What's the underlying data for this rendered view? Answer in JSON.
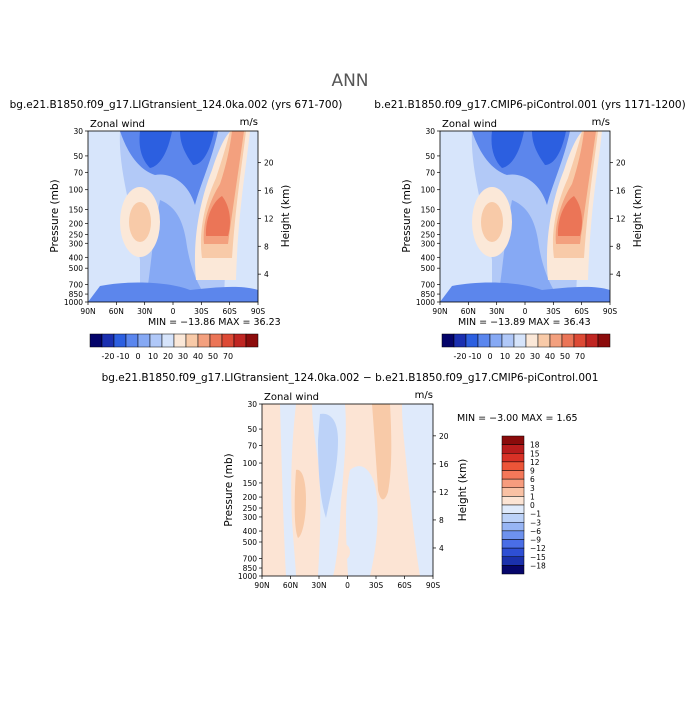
{
  "page": {
    "title": "ANN"
  },
  "color_scales": {
    "full": {
      "levels": [
        "-20",
        "-10",
        "0",
        "10",
        "20",
        "30",
        "40",
        "50",
        "70"
      ],
      "colors": [
        "#04046a",
        "#1a2fb0",
        "#2c5fe0",
        "#5a86ee",
        "#86a9f4",
        "#b0c8f8",
        "#d6e4fb",
        "#fbe8d8",
        "#f8caa8",
        "#f3a07e",
        "#eb7557",
        "#dd4a35",
        "#c02622",
        "#8c0c0c"
      ]
    },
    "diff": {
      "levels": [
        "18",
        "15",
        "12",
        "9",
        "6",
        "3",
        "1",
        "0",
        "−1",
        "−3",
        "−6",
        "−9",
        "−12",
        "−15",
        "−18"
      ],
      "colors": [
        "#8a0b0b",
        "#b81c1c",
        "#d83126",
        "#ec5538",
        "#f4785a",
        "#f79c7e",
        "#f9c1a4",
        "#fce4d4",
        "#dfeafb",
        "#bcd2f8",
        "#97b5f4",
        "#6e92ee",
        "#4a6ee6",
        "#2e4fd4",
        "#1b31ac",
        "#06066b"
      ]
    }
  },
  "chart_data": [
    {
      "id": "panel-1",
      "type": "heatmap",
      "title": "bg.e21.B1850.f09_g17.LIGtransient_124.0ka.002 (yrs 671-700)",
      "subtitle_left": "Zonal wind",
      "subtitle_right": "m/s",
      "ylabel": "Pressure (mb)",
      "y2label": "Height (km)",
      "x_ticks": [
        "90N",
        "60N",
        "30N",
        "0",
        "30S",
        "60S",
        "90S"
      ],
      "y_ticks": [
        "30",
        "50",
        "70",
        "100",
        "150",
        "200",
        "250",
        "300",
        "400",
        "500",
        "700",
        "850",
        "1000"
      ],
      "y2_ticks": [
        "20",
        "16",
        "12",
        "8",
        "4"
      ],
      "ylim": [
        1000,
        30
      ],
      "xlim": [
        "90N",
        "90S"
      ],
      "min": "-13.86",
      "max": "36.23",
      "stats_text": "MIN = −13.86   MAX =  36.23",
      "colorbar": "full"
    },
    {
      "id": "panel-2",
      "type": "heatmap",
      "title": "b.e21.B1850.f09_g17.CMIP6-piControl.001 (yrs 1171-1200)",
      "subtitle_left": "Zonal wind",
      "subtitle_right": "m/s",
      "ylabel": "Pressure (mb)",
      "y2label": "Height (km)",
      "x_ticks": [
        "90N",
        "60N",
        "30N",
        "0",
        "30S",
        "60S",
        "90S"
      ],
      "y_ticks": [
        "30",
        "50",
        "70",
        "100",
        "150",
        "200",
        "250",
        "300",
        "400",
        "500",
        "700",
        "850",
        "1000"
      ],
      "y2_ticks": [
        "20",
        "16",
        "12",
        "8",
        "4"
      ],
      "ylim": [
        1000,
        30
      ],
      "xlim": [
        "90N",
        "90S"
      ],
      "min": "-13.89",
      "max": "36.43",
      "stats_text": "MIN = −13.89   MAX =  36.43",
      "colorbar": "full"
    },
    {
      "id": "panel-diff",
      "type": "heatmap",
      "title": "bg.e21.B1850.f09_g17.LIGtransient_124.0ka.002 − b.e21.B1850.f09_g17.CMIP6-piControl.001",
      "subtitle_left": "Zonal wind",
      "subtitle_right": "m/s",
      "ylabel": "Pressure (mb)",
      "y2label": "Height (km)",
      "x_ticks": [
        "90N",
        "60N",
        "30N",
        "0",
        "30S",
        "60S",
        "90S"
      ],
      "y_ticks": [
        "30",
        "50",
        "70",
        "100",
        "150",
        "200",
        "250",
        "300",
        "400",
        "500",
        "700",
        "850",
        "1000"
      ],
      "y2_ticks": [
        "20",
        "16",
        "12",
        "8",
        "4"
      ],
      "ylim": [
        1000,
        30
      ],
      "xlim": [
        "90N",
        "90S"
      ],
      "min": "-3.00",
      "max": "1.65",
      "stats_text": "MIN =  −3.00   MAX =   1.65",
      "colorbar": "diff"
    }
  ]
}
